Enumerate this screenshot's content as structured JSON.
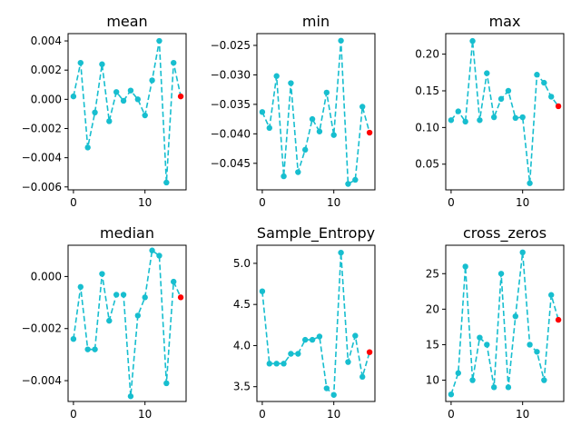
{
  "figure": {
    "background": "#ffffff"
  },
  "colors": {
    "series": "#17becf",
    "last_point": "#ff0000"
  },
  "chart_data": [
    {
      "type": "line",
      "title": "mean",
      "x": [
        0,
        1,
        2,
        3,
        4,
        5,
        6,
        7,
        8,
        9,
        10,
        11,
        12,
        13,
        14,
        15
      ],
      "y": [
        0.0002,
        0.0025,
        -0.0033,
        -0.0009,
        0.0024,
        -0.0015,
        0.0005,
        -0.0001,
        0.0006,
        0.0,
        -0.0011,
        0.0013,
        0.004,
        -0.0057,
        0.0025,
        0.0002
      ],
      "xlim": [
        -0.75,
        15.75
      ],
      "ylim": [
        -0.0062,
        0.0045
      ],
      "xticks": [
        0,
        10
      ],
      "xtick_labels": [
        "0",
        "10"
      ],
      "yticks": [
        0.004,
        0.002,
        0.0,
        -0.002,
        -0.004,
        -0.006
      ],
      "ytick_labels": [
        "0.004",
        "0.002",
        "0.000",
        "−0.002",
        "−0.004",
        "−0.006"
      ]
    },
    {
      "type": "line",
      "title": "min",
      "x": [
        0,
        1,
        2,
        3,
        4,
        5,
        6,
        7,
        8,
        9,
        10,
        11,
        12,
        13,
        14,
        15
      ],
      "y": [
        -0.0363,
        -0.039,
        -0.0302,
        -0.0472,
        -0.0314,
        -0.0465,
        -0.0427,
        -0.0375,
        -0.0396,
        -0.033,
        -0.0402,
        -0.0242,
        -0.0485,
        -0.0478,
        -0.0354,
        -0.0398
      ],
      "xlim": [
        -0.75,
        15.75
      ],
      "ylim": [
        -0.0495,
        -0.023
      ],
      "xticks": [
        0,
        10
      ],
      "xtick_labels": [
        "0",
        "10"
      ],
      "yticks": [
        -0.025,
        -0.03,
        -0.035,
        -0.04,
        -0.045
      ],
      "ytick_labels": [
        "−0.025",
        "−0.030",
        "−0.035",
        "−0.040",
        "−0.045"
      ]
    },
    {
      "type": "line",
      "title": "max",
      "x": [
        0,
        1,
        2,
        3,
        4,
        5,
        6,
        7,
        8,
        9,
        10,
        11,
        12,
        13,
        14,
        15
      ],
      "y": [
        0.11,
        0.122,
        0.108,
        0.218,
        0.11,
        0.174,
        0.114,
        0.139,
        0.15,
        0.113,
        0.114,
        0.024,
        0.172,
        0.161,
        0.142,
        0.129
      ],
      "xlim": [
        -0.75,
        15.75
      ],
      "ylim": [
        0.015,
        0.228
      ],
      "xticks": [
        0,
        10
      ],
      "xtick_labels": [
        "0",
        "10"
      ],
      "yticks": [
        0.2,
        0.15,
        0.1,
        0.05
      ],
      "ytick_labels": [
        "0.20",
        "0.15",
        "0.10",
        "0.05"
      ]
    },
    {
      "type": "line",
      "title": "median",
      "x": [
        0,
        1,
        2,
        3,
        4,
        5,
        6,
        7,
        8,
        9,
        10,
        11,
        12,
        13,
        14,
        15
      ],
      "y": [
        -0.0024,
        -0.0004,
        -0.0028,
        -0.0028,
        0.0001,
        -0.0017,
        -0.0007,
        -0.0007,
        -0.0046,
        -0.0015,
        -0.0008,
        0.001,
        0.0008,
        -0.0041,
        -0.0002,
        -0.0008
      ],
      "xlim": [
        -0.75,
        15.75
      ],
      "ylim": [
        -0.0048,
        0.0012
      ],
      "xticks": [
        0,
        10
      ],
      "xtick_labels": [
        "0",
        "10"
      ],
      "yticks": [
        0.0,
        -0.002,
        -0.004
      ],
      "ytick_labels": [
        "0.000",
        "−0.002",
        "−0.004"
      ]
    },
    {
      "type": "line",
      "title": "Sample_Entropy",
      "x": [
        0,
        1,
        2,
        3,
        4,
        5,
        6,
        7,
        8,
        9,
        10,
        11,
        12,
        13,
        14,
        15
      ],
      "y": [
        4.66,
        3.78,
        3.78,
        3.78,
        3.9,
        3.9,
        4.07,
        4.07,
        4.11,
        3.48,
        3.4,
        5.13,
        3.8,
        4.12,
        3.62,
        3.92
      ],
      "xlim": [
        -0.75,
        15.75
      ],
      "ylim": [
        3.32,
        5.22
      ],
      "xticks": [
        0,
        10
      ],
      "xtick_labels": [
        "0",
        "10"
      ],
      "yticks": [
        5.0,
        4.5,
        4.0,
        3.5
      ],
      "ytick_labels": [
        "5.0",
        "4.5",
        "4.0",
        "3.5"
      ]
    },
    {
      "type": "line",
      "title": "cross_zeros",
      "x": [
        0,
        1,
        2,
        3,
        4,
        5,
        6,
        7,
        8,
        9,
        10,
        11,
        12,
        13,
        14,
        15
      ],
      "y": [
        8,
        11,
        26,
        10,
        16,
        15,
        9,
        25,
        9,
        19,
        28,
        15,
        14,
        10,
        22,
        18.5
      ],
      "xlim": [
        -0.75,
        15.75
      ],
      "ylim": [
        7.0,
        29.0
      ],
      "xticks": [
        0,
        10
      ],
      "xtick_labels": [
        "0",
        "10"
      ],
      "yticks": [
        25,
        20,
        15,
        10
      ],
      "ytick_labels": [
        "25",
        "20",
        "15",
        "10"
      ]
    }
  ]
}
